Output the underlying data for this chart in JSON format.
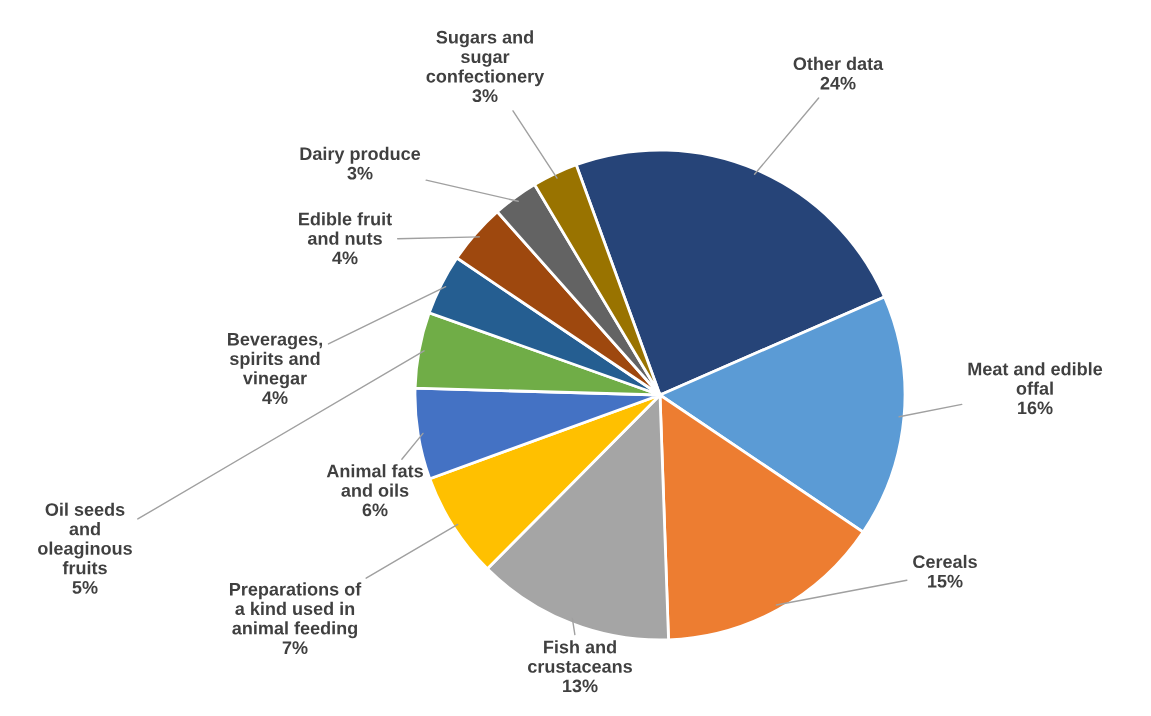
{
  "chart_data": {
    "type": "pie",
    "categories": [
      "Other data",
      "Meat and edible\noffal",
      "Cereals",
      "Fish and\ncrustaceans",
      "Preparations of\na kind used in\nanimal feeding",
      "Animal fats\nand oils",
      "Oil seeds\nand\noleaginous\nfruits",
      "Beverages,\nspirits and\nvinegar",
      "Edible fruit\nand nuts",
      "Dairy produce",
      "Sugars and\nsugar\nconfectionery"
    ],
    "values": [
      24,
      16,
      15,
      13,
      7,
      6,
      5,
      4,
      4,
      3,
      3
    ],
    "value_labels": [
      "24%",
      "16%",
      "15%",
      "13%",
      "7%",
      "6%",
      "5%",
      "4%",
      "4%",
      "3%",
      "3%"
    ],
    "colors": [
      "#264478",
      "#5b9bd5",
      "#ed7d31",
      "#a5a5a5",
      "#ffc000",
      "#4472c4",
      "#70ad47",
      "#255e91",
      "#9e480e",
      "#636363",
      "#997300"
    ],
    "legend": false
  }
}
